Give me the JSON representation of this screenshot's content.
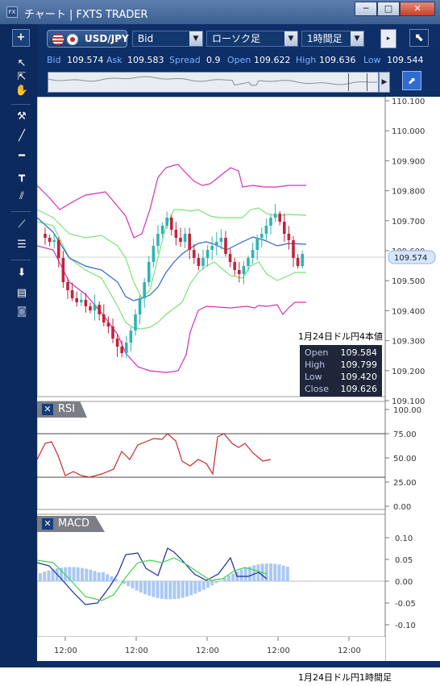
{
  "window": {
    "app_icon": "FX",
    "title": "チャート | FXTS TRADER",
    "controls": {
      "minimize": "─",
      "restore": "□",
      "close": "✕"
    }
  },
  "toolbar": {
    "pair": "USD/JPY",
    "price_type": "Bid",
    "chart_style": "ローソク足",
    "timeframe": "1時間足"
  },
  "quote": {
    "bid_label": "Bid",
    "bid": "109.574",
    "ask_label": "Ask",
    "ask": "109.583",
    "spread_label": "Spread",
    "spread": "0.9",
    "open_label": "Open",
    "open": "109.622",
    "high_label": "High",
    "high": "109.636",
    "low_label": "Low",
    "low": "109.544"
  },
  "price_axis": [
    "110.100",
    "110.000",
    "109.900",
    "109.800",
    "109.700",
    "109.600",
    "109.500",
    "109.400",
    "109.300",
    "109.200",
    "109.100"
  ],
  "current_price": "109.574",
  "info_box": {
    "caption": "1月24日ドル円4本値",
    "open_label": "Open",
    "open": "109.584",
    "high_label": "High",
    "high": "109.799",
    "low_label": "Low",
    "low": "109.420",
    "close_label": "Close",
    "close": "109.626"
  },
  "rsi": {
    "label": "RSI",
    "axis": [
      "100.00",
      "75.00",
      "50.00",
      "25.00",
      "0.00"
    ]
  },
  "macd": {
    "label": "MACD",
    "axis": [
      "0.10",
      "0.05",
      "0.00",
      "-0.05",
      "-0.10"
    ]
  },
  "time_axis": [
    "12:00",
    "12:00",
    "12:00",
    "12:00",
    "12:00"
  ],
  "footer_caption": "1月24日ドル円1時間足",
  "colors": {
    "up": "#2fb3b3",
    "down": "#c0243a",
    "bollinger_outer": "#d62fb6",
    "bollinger_inner": "#78e37a",
    "ma": "#2b66c8",
    "rsi": "#c62b2b",
    "macd": "#1a2a9a",
    "signal": "#3fd34a",
    "hist": "#a9c8f5"
  }
}
